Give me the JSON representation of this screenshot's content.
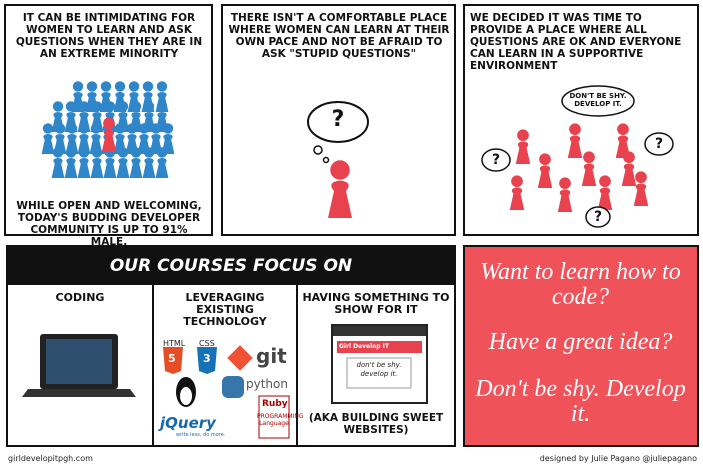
{
  "panels": [
    {
      "caption": "It can be intimidating for women to learn and ask questions when they are in an extreme minority",
      "footer": "While open and welcoming, today's budding developer community is up to 91% male."
    },
    {
      "caption": "There isn't a comfortable place where women can learn at their own pace and not be afraid to ask \"stupid questions\"",
      "bubble": "?"
    },
    {
      "caption": "We decided it was time to provide a place where all questions are OK and everyone can learn in a supportive environment",
      "bubble": "Don't be shy. Develop it.",
      "questions": [
        "?",
        "?",
        "?"
      ]
    }
  ],
  "courses": {
    "title": "Our courses focus on",
    "columns": [
      {
        "heading": "Coding"
      },
      {
        "heading": "Leveraging existing technology",
        "logos": [
          "HTML",
          "5",
          "CSS",
          "3",
          "git",
          "python",
          "jQuery",
          "write less, do more.",
          "Ruby",
          "PROGRAMMING Language"
        ]
      },
      {
        "heading": "Having something to show for it",
        "browser_title": "Girl Develop IT",
        "browser_text": "don't be shy. develop it.",
        "note": "(aka building sweet websites)"
      }
    ]
  },
  "pitch": [
    "Want to learn how to code?",
    "Have a great idea?",
    "Don't be shy. Develop it."
  ],
  "footer": {
    "left": "girldevelopitpgh.com",
    "right": "designed by Julie Pagano @juliepagano"
  }
}
